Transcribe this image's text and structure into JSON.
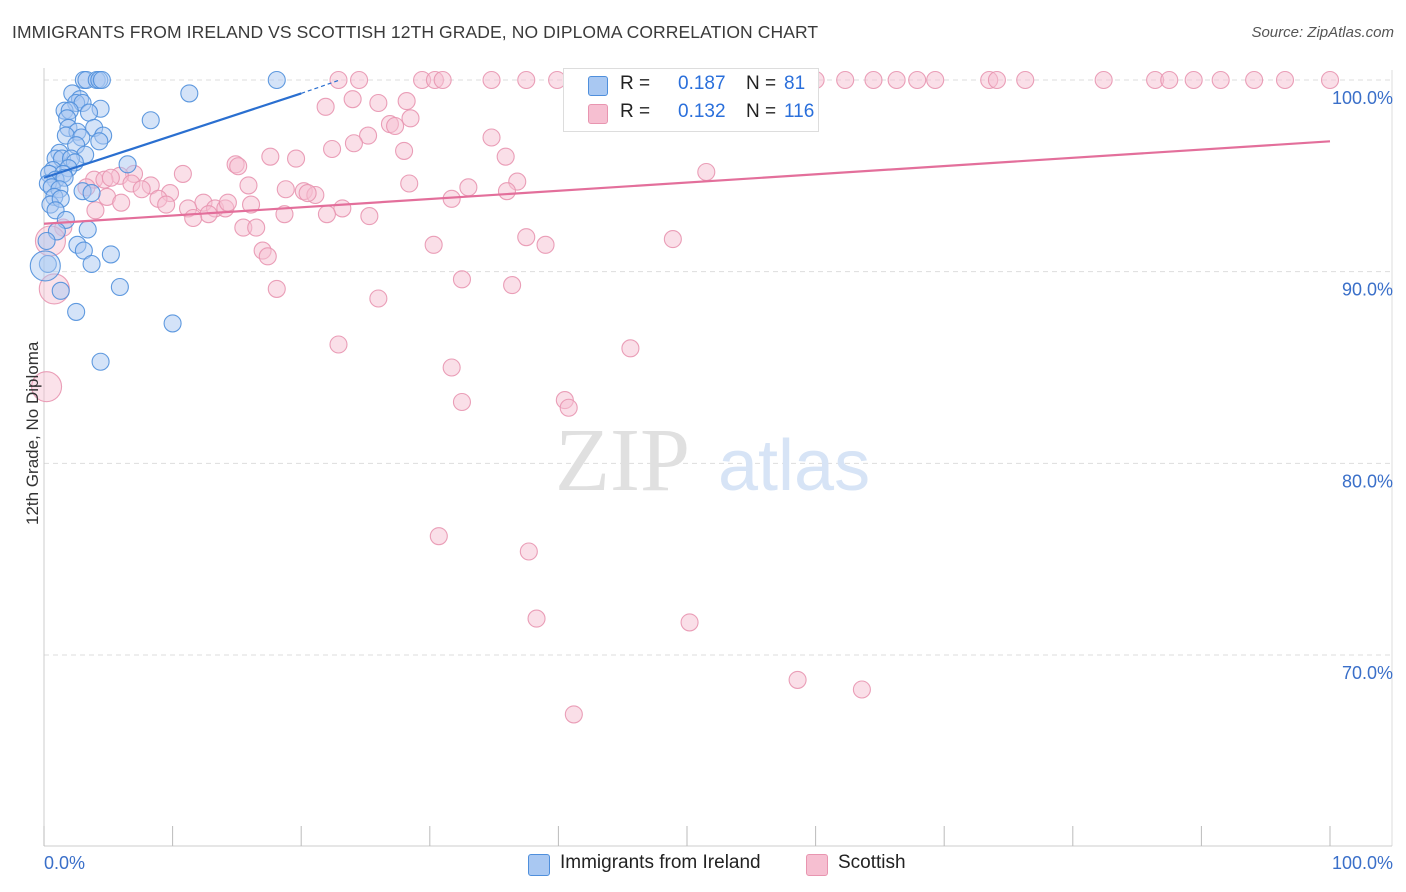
{
  "header": {
    "title": "IMMIGRANTS FROM IRELAND VS SCOTTISH 12TH GRADE, NO DIPLOMA CORRELATION CHART",
    "source": "Source: ZipAtlas.com"
  },
  "watermark": {
    "zip": "ZIP",
    "atlas": "atlas"
  },
  "legend": {
    "rows": [
      {
        "r_label": "R = ",
        "r_value": "0.187",
        "n_label": "N = ",
        "n_value": "81"
      },
      {
        "r_label": "R = ",
        "r_value": "0.132",
        "n_label": "N = ",
        "n_value": "116"
      }
    ]
  },
  "bottom_legend": {
    "ireland": "Immigrants from Ireland",
    "scottish": "Scottish"
  },
  "colors": {
    "ireland_fill": "#a9c8f2",
    "ireland_stroke": "#4f8fdc",
    "ireland_line": "#2a6fd0",
    "scottish_fill": "#f6bfd1",
    "scottish_stroke": "#e895b0",
    "scottish_line": "#e36f9b",
    "tick_label": "#3a6fc9",
    "grid": "#dddddd"
  },
  "chart_data": {
    "type": "scatter",
    "title": "IMMIGRANTS FROM IRELAND VS SCOTTISH 12TH GRADE, NO DIPLOMA CORRELATION CHART",
    "xlabel": "",
    "ylabel": "12th Grade, No Diploma",
    "xlim": [
      0,
      100
    ],
    "ylim": [
      60,
      100
    ],
    "x_tick_labels": [
      "0.0%",
      "100.0%"
    ],
    "y_ticks": [
      70,
      80,
      90,
      100
    ],
    "y_tick_labels": [
      "70.0%",
      "80.0%",
      "90.0%",
      "100.0%"
    ],
    "grid": true,
    "legend_position": "top-center",
    "series": [
      {
        "name": "Immigrants from Ireland",
        "r": 0.187,
        "n": 81,
        "trend": {
          "x": [
            0,
            20
          ],
          "y": [
            94.9,
            99.3
          ],
          "dashed_extension_to": [
            23,
            100
          ]
        },
        "points": [
          [
            3.1,
            100
          ],
          [
            3.3,
            100
          ],
          [
            4.1,
            100
          ],
          [
            4.3,
            100
          ],
          [
            4.5,
            100
          ],
          [
            18.1,
            100
          ],
          [
            2.2,
            99.3
          ],
          [
            11.3,
            99.3
          ],
          [
            2.8,
            99.0
          ],
          [
            2.5,
            98.8
          ],
          [
            3.0,
            98.8
          ],
          [
            1.6,
            98.4
          ],
          [
            2.0,
            98.4
          ],
          [
            4.4,
            98.5
          ],
          [
            3.5,
            98.3
          ],
          [
            1.8,
            98.0
          ],
          [
            8.3,
            97.9
          ],
          [
            1.9,
            97.5
          ],
          [
            3.9,
            97.5
          ],
          [
            2.6,
            97.3
          ],
          [
            1.7,
            97.1
          ],
          [
            2.9,
            97.0
          ],
          [
            4.6,
            97.1
          ],
          [
            4.3,
            96.8
          ],
          [
            2.5,
            96.6
          ],
          [
            1.2,
            96.2
          ],
          [
            3.2,
            96.1
          ],
          [
            0.9,
            95.9
          ],
          [
            1.4,
            95.9
          ],
          [
            2.1,
            95.9
          ],
          [
            2.4,
            95.7
          ],
          [
            6.5,
            95.6
          ],
          [
            0.7,
            95.3
          ],
          [
            1.9,
            95.4
          ],
          [
            0.4,
            95.1
          ],
          [
            1.5,
            95.1
          ],
          [
            0.9,
            94.8
          ],
          [
            1.6,
            94.9
          ],
          [
            0.3,
            94.6
          ],
          [
            0.6,
            94.4
          ],
          [
            1.2,
            94.3
          ],
          [
            3.0,
            94.2
          ],
          [
            3.7,
            94.1
          ],
          [
            0.8,
            93.9
          ],
          [
            0.5,
            93.5
          ],
          [
            1.3,
            93.8
          ],
          [
            0.9,
            93.2
          ],
          [
            1.7,
            92.7
          ],
          [
            1.0,
            92.1
          ],
          [
            3.4,
            92.2
          ],
          [
            0.2,
            91.6
          ],
          [
            2.6,
            91.4
          ],
          [
            3.1,
            91.1
          ],
          [
            5.2,
            90.9
          ],
          [
            0.3,
            90.4
          ],
          [
            3.7,
            90.4
          ],
          [
            1.3,
            89.0
          ],
          [
            5.9,
            89.2
          ],
          [
            2.5,
            87.9
          ],
          [
            10.0,
            87.3
          ],
          [
            4.4,
            85.3
          ],
          [
            0.1,
            90.3,
            "large"
          ]
        ]
      },
      {
        "name": "Scottish",
        "r": 0.132,
        "n": 116,
        "trend": {
          "x": [
            0,
            100
          ],
          "y": [
            92.5,
            96.8
          ]
        },
        "points": [
          [
            29.4,
            100
          ],
          [
            30.4,
            100
          ],
          [
            31.0,
            100
          ],
          [
            34.8,
            100
          ],
          [
            37.5,
            100
          ],
          [
            39.9,
            100
          ],
          [
            41.9,
            100
          ],
          [
            49.1,
            100
          ],
          [
            52.5,
            100
          ],
          [
            54.6,
            100
          ],
          [
            60.0,
            100
          ],
          [
            62.3,
            100
          ],
          [
            64.5,
            100
          ],
          [
            66.3,
            100
          ],
          [
            67.9,
            100
          ],
          [
            69.3,
            100
          ],
          [
            73.5,
            100
          ],
          [
            74.1,
            100
          ],
          [
            76.3,
            100
          ],
          [
            82.4,
            100
          ],
          [
            86.4,
            100
          ],
          [
            87.5,
            100
          ],
          [
            89.4,
            100
          ],
          [
            91.5,
            100
          ],
          [
            94.1,
            100
          ],
          [
            96.5,
            100
          ],
          [
            100.0,
            100
          ],
          [
            22.9,
            100
          ],
          [
            24.5,
            100
          ],
          [
            24.0,
            99.0
          ],
          [
            21.9,
            98.6
          ],
          [
            26.0,
            98.8
          ],
          [
            28.2,
            98.9
          ],
          [
            28.5,
            98.0
          ],
          [
            26.9,
            97.7
          ],
          [
            27.3,
            97.6
          ],
          [
            25.2,
            97.1
          ],
          [
            24.1,
            96.7
          ],
          [
            34.8,
            97.0
          ],
          [
            22.4,
            96.4
          ],
          [
            28.0,
            96.3
          ],
          [
            35.9,
            96.0
          ],
          [
            17.6,
            96.0
          ],
          [
            19.6,
            95.9
          ],
          [
            14.9,
            95.6
          ],
          [
            15.1,
            95.5
          ],
          [
            7.0,
            95.1
          ],
          [
            5.9,
            95.0
          ],
          [
            10.8,
            95.1
          ],
          [
            3.9,
            94.8
          ],
          [
            4.7,
            94.8
          ],
          [
            5.2,
            94.9
          ],
          [
            6.8,
            94.6
          ],
          [
            8.3,
            94.5
          ],
          [
            7.6,
            94.3
          ],
          [
            3.3,
            94.4
          ],
          [
            9.8,
            94.1
          ],
          [
            18.8,
            94.3
          ],
          [
            20.2,
            94.2
          ],
          [
            21.1,
            94.0
          ],
          [
            36.8,
            94.7
          ],
          [
            36.0,
            94.2
          ],
          [
            15.9,
            94.5
          ],
          [
            8.9,
            93.8
          ],
          [
            12.4,
            93.6
          ],
          [
            11.2,
            93.3
          ],
          [
            9.5,
            93.5
          ],
          [
            13.3,
            93.3
          ],
          [
            14.1,
            93.3
          ],
          [
            14.3,
            93.6
          ],
          [
            16.1,
            93.5
          ],
          [
            23.2,
            93.3
          ],
          [
            12.8,
            93.0
          ],
          [
            11.6,
            92.8
          ],
          [
            18.7,
            93.0
          ],
          [
            25.3,
            92.9
          ],
          [
            31.7,
            93.8
          ],
          [
            1.5,
            92.3
          ],
          [
            15.5,
            92.3
          ],
          [
            16.5,
            92.3
          ],
          [
            37.5,
            91.8
          ],
          [
            39.0,
            91.4
          ],
          [
            30.3,
            91.4
          ],
          [
            17.0,
            91.1
          ],
          [
            17.4,
            90.8
          ],
          [
            48.9,
            91.7
          ],
          [
            32.5,
            89.6
          ],
          [
            36.4,
            89.3
          ],
          [
            18.1,
            89.1
          ],
          [
            26.0,
            88.6
          ],
          [
            45.6,
            86.0
          ],
          [
            22.9,
            86.2
          ],
          [
            31.7,
            85.0
          ],
          [
            32.5,
            83.2
          ],
          [
            40.5,
            83.3
          ],
          [
            40.8,
            82.9
          ],
          [
            30.7,
            76.2
          ],
          [
            37.7,
            75.4
          ],
          [
            38.3,
            71.9
          ],
          [
            50.2,
            71.7
          ],
          [
            58.6,
            68.7
          ],
          [
            41.2,
            66.9
          ],
          [
            63.6,
            68.2
          ],
          [
            4.0,
            93.2
          ],
          [
            4.9,
            93.9
          ],
          [
            6.0,
            93.6
          ],
          [
            28.4,
            94.6
          ],
          [
            51.5,
            95.2
          ],
          [
            20.5,
            94.1
          ],
          [
            22.0,
            93.0
          ],
          [
            33.0,
            94.4
          ],
          [
            0.5,
            91.6,
            "large"
          ],
          [
            0.8,
            89.1,
            "large"
          ],
          [
            0.2,
            84.0,
            "large"
          ]
        ]
      }
    ]
  }
}
